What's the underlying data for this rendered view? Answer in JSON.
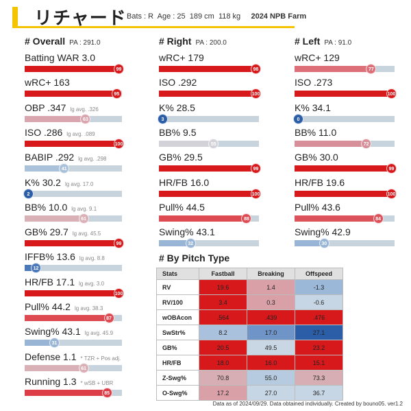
{
  "header": {
    "name": "リチャード",
    "bats_label": "Bats : R",
    "age_label": "Age : 25",
    "height": "189 cm",
    "weight": "118 kg",
    "league": "2024 NPB Farm"
  },
  "overall": {
    "title": "# Overall",
    "pa": "PA : 291.0",
    "stats": [
      {
        "label": "Batting WAR",
        "value": "3.0",
        "lg": "",
        "pct": 99,
        "color": "#d7191c"
      },
      {
        "label": "wRC+",
        "value": "163",
        "lg": "",
        "pct": 95,
        "color": "#d7191c"
      },
      {
        "label": "OBP",
        "value": ".347",
        "lg": "lg avg. .326",
        "pct": 63,
        "color": "#d9a5ae"
      },
      {
        "label": "ISO",
        "value": ".286",
        "lg": "lg avg. .089",
        "pct": 100,
        "color": "#d7191c"
      },
      {
        "label": "BABIP",
        "value": ".292",
        "lg": "lg avg. .298",
        "pct": 41,
        "color": "#a9c1d9"
      },
      {
        "label": "K%",
        "value": "30.2",
        "lg": "lg avg. 17.0",
        "pct": 2,
        "color": "#2b5ea7"
      },
      {
        "label": "BB%",
        "value": "10.0",
        "lg": "lg avg. 9.1",
        "pct": 61,
        "color": "#d9b0b6"
      },
      {
        "label": "GB%",
        "value": "29.7",
        "lg": "lg avg. 45.5",
        "pct": 99,
        "color": "#d7191c"
      },
      {
        "label": "IFFB%",
        "value": "13.6",
        "lg": "lg avg. 8.8",
        "pct": 12,
        "color": "#4a78b8"
      },
      {
        "label": "HR/FB",
        "value": "17.1",
        "lg": "lg avg. 3.0",
        "pct": 100,
        "color": "#d7191c"
      },
      {
        "label": "Pull%",
        "value": "44.2",
        "lg": "lg avg. 38.3",
        "pct": 87,
        "color": "#de4a52"
      },
      {
        "label": "Swing%",
        "value": "43.1",
        "lg": "lg avg. 45.9",
        "pct": 31,
        "color": "#98b5d6"
      },
      {
        "label": "Defense",
        "value": "1.1",
        "lg": "* TZR + Pos adj.",
        "pct": 61,
        "color": "#d9b0b6"
      },
      {
        "label": "Running",
        "value": "1.3",
        "lg": "* wSB + UBR",
        "pct": 85,
        "color": "#dc3d47"
      }
    ]
  },
  "right": {
    "title": "# Right",
    "pa": "PA : 200.0",
    "stats": [
      {
        "label": "wRC+",
        "value": "179",
        "pct": 98,
        "color": "#d7191c"
      },
      {
        "label": "ISO",
        "value": ".292",
        "pct": 100,
        "color": "#d7191c"
      },
      {
        "label": "K%",
        "value": "28.5",
        "pct": 3,
        "color": "#2b5ea7"
      },
      {
        "label": "BB%",
        "value": "9.5",
        "pct": 55,
        "color": "#d2d2d8"
      },
      {
        "label": "GB%",
        "value": "29.5",
        "pct": 99,
        "color": "#d7191c"
      },
      {
        "label": "HR/FB",
        "value": "16.0",
        "pct": 100,
        "color": "#d7191c"
      },
      {
        "label": "Pull%",
        "value": "44.5",
        "pct": 88,
        "color": "#de4a52"
      },
      {
        "label": "Swing%",
        "value": "43.1",
        "pct": 32,
        "color": "#98b5d6"
      }
    ]
  },
  "left": {
    "title": "# Left",
    "pa": "PA : 91.0",
    "stats": [
      {
        "label": "wRC+",
        "value": "129",
        "pct": 77,
        "color": "#dc6f78"
      },
      {
        "label": "ISO",
        "value": ".273",
        "pct": 100,
        "color": "#d7191c"
      },
      {
        "label": "K%",
        "value": "34.1",
        "pct": 0,
        "color": "#2b5ea7"
      },
      {
        "label": "BB%",
        "value": "11.0",
        "pct": 72,
        "color": "#d78f99"
      },
      {
        "label": "GB%",
        "value": "30.0",
        "pct": 99,
        "color": "#d7191c"
      },
      {
        "label": "HR/FB",
        "value": "19.6",
        "pct": 100,
        "color": "#d7191c"
      },
      {
        "label": "Pull%",
        "value": "43.6",
        "pct": 84,
        "color": "#dc525a"
      },
      {
        "label": "Swing%",
        "value": "42.9",
        "pct": 30,
        "color": "#98b5d6"
      }
    ]
  },
  "pitch": {
    "title": "# By Pitch Type",
    "headers": [
      "Stats",
      "Fastball",
      "Breaking",
      "Offspeed"
    ],
    "rows": [
      {
        "label": "RV",
        "cells": [
          {
            "v": "19.6",
            "c": "#d7191c"
          },
          {
            "v": "1.4",
            "c": "#d9a0a8"
          },
          {
            "v": "-1.3",
            "c": "#9cb8d8"
          }
        ]
      },
      {
        "label": "RV/100",
        "cells": [
          {
            "v": "3.4",
            "c": "#d7191c"
          },
          {
            "v": "0.3",
            "c": "#d9a0a8"
          },
          {
            "v": "-0.6",
            "c": "#c7d6e4"
          }
        ]
      },
      {
        "label": "wOBAcon",
        "cells": [
          {
            "v": ".564",
            "c": "#d7191c"
          },
          {
            "v": ".439",
            "c": "#d7191c"
          },
          {
            "v": ".476",
            "c": "#d7191c"
          }
        ]
      },
      {
        "label": "SwStr%",
        "cells": [
          {
            "v": "8.2",
            "c": "#a9c1dc"
          },
          {
            "v": "17.0",
            "c": "#6f95c8"
          },
          {
            "v": "27.1",
            "c": "#2b5ea7"
          }
        ]
      },
      {
        "label": "GB%",
        "cells": [
          {
            "v": "20.5",
            "c": "#d7191c"
          },
          {
            "v": "49.5",
            "c": "#c9d6e3"
          },
          {
            "v": "23.2",
            "c": "#d7191c"
          }
        ]
      },
      {
        "label": "HR/FB",
        "cells": [
          {
            "v": "18.0",
            "c": "#d7191c"
          },
          {
            "v": "16.0",
            "c": "#d7191c"
          },
          {
            "v": "15.1",
            "c": "#d7191c"
          }
        ]
      },
      {
        "label": "Z-Swg%",
        "cells": [
          {
            "v": "70.8",
            "c": "#d7aeb4"
          },
          {
            "v": "55.0",
            "c": "#b7cbe0"
          },
          {
            "v": "73.3",
            "c": "#d7aeb4"
          }
        ]
      },
      {
        "label": "O-Swg%",
        "cells": [
          {
            "v": "17.2",
            "c": "#d9a0a8"
          },
          {
            "v": "27.0",
            "c": "#c7d6e4"
          },
          {
            "v": "36.7",
            "c": "#c7d6e4"
          }
        ]
      }
    ]
  },
  "footer": "Data as of 2024/09/29. Data obtained individually. Created by bouno05.  ver1.2"
}
